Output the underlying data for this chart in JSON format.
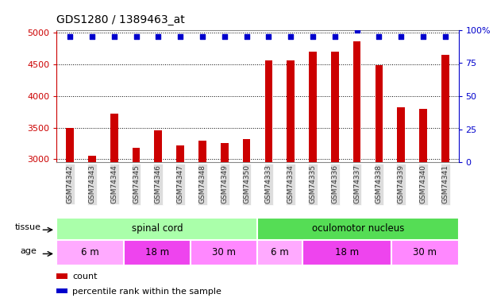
{
  "title": "GDS1280 / 1389463_at",
  "samples": [
    "GSM74342",
    "GSM74343",
    "GSM74344",
    "GSM74345",
    "GSM74346",
    "GSM74347",
    "GSM74348",
    "GSM74349",
    "GSM74350",
    "GSM74333",
    "GSM74334",
    "GSM74335",
    "GSM74336",
    "GSM74337",
    "GSM74338",
    "GSM74339",
    "GSM74340",
    "GSM74341"
  ],
  "counts": [
    3490,
    3060,
    3720,
    3175,
    3455,
    3215,
    3295,
    3255,
    3315,
    4570,
    4570,
    4710,
    4710,
    4870,
    4490,
    3820,
    3795,
    4650
  ],
  "percentile": [
    95,
    95,
    95,
    95,
    95,
    95,
    95,
    95,
    95,
    95,
    95,
    95,
    95,
    100,
    95,
    95,
    95,
    95
  ],
  "ylim_left": [
    2950,
    5050
  ],
  "ylim_right": [
    0,
    100
  ],
  "yticks_left": [
    3000,
    3500,
    4000,
    4500,
    5000
  ],
  "yticks_right": [
    0,
    25,
    50,
    75,
    100
  ],
  "bar_color": "#cc0000",
  "dot_color": "#0000cc",
  "tissue_groups": [
    {
      "label": "spinal cord",
      "start": 0,
      "end": 9,
      "color": "#aaffaa"
    },
    {
      "label": "oculomotor nucleus",
      "start": 9,
      "end": 18,
      "color": "#55dd55"
    }
  ],
  "age_groups": [
    {
      "label": "6 m",
      "start": 0,
      "end": 3,
      "color": "#ffaaff"
    },
    {
      "label": "18 m",
      "start": 3,
      "end": 6,
      "color": "#ee44ee"
    },
    {
      "label": "30 m",
      "start": 6,
      "end": 9,
      "color": "#ff88ff"
    },
    {
      "label": "6 m",
      "start": 9,
      "end": 11,
      "color": "#ffaaff"
    },
    {
      "label": "18 m",
      "start": 11,
      "end": 15,
      "color": "#ee44ee"
    },
    {
      "label": "30 m",
      "start": 15,
      "end": 18,
      "color": "#ff88ff"
    }
  ],
  "legend_count_label": "count",
  "legend_percentile_label": "percentile rank within the sample",
  "tissue_label": "tissue",
  "age_label": "age",
  "bg_color": "#ffffff",
  "xticklabel_bg": "#dddddd",
  "left_axis_color": "#cc0000",
  "right_axis_color": "#0000cc",
  "bar_width": 0.35
}
